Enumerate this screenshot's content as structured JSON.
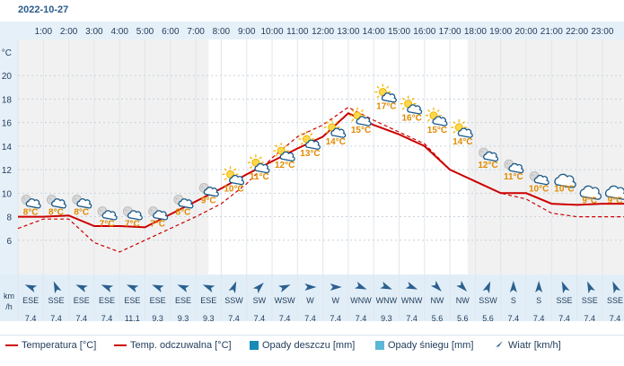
{
  "date": "2022-10-27",
  "hours": [
    "1:00",
    "2:00",
    "3:00",
    "4:00",
    "5:00",
    "6:00",
    "7:00",
    "8:00",
    "9:00",
    "10:00",
    "11:00",
    "12:00",
    "13:00",
    "14:00",
    "15:00",
    "16:00",
    "17:00",
    "18:00",
    "19:00",
    "20:00",
    "21:00",
    "22:00",
    "23:00"
  ],
  "y_unit": "°C",
  "y_ticks": [
    "6",
    "8",
    "10",
    "12",
    "14",
    "16",
    "18",
    "20"
  ],
  "wind_unit_line1": "km",
  "wind_unit_line2": "/h",
  "legend": {
    "temperature": "Temperatura [°C]",
    "feels_like": "Temp. odczuwalna [°C]",
    "rain": "Opady deszczu [mm]",
    "snow": "Opady śniegu [mm]",
    "wind": "Wiatr [km/h]"
  },
  "colors": {
    "temperature": "#cc0000",
    "feels_like": "#cc0000",
    "rain": "#1a8ab5",
    "snow": "#5cb8d6",
    "wind": "#2a6090",
    "label": "#e08a00"
  },
  "chart_data": {
    "type": "line",
    "x": [
      0,
      1,
      2,
      3,
      4,
      5,
      6,
      7,
      8,
      9,
      10,
      11,
      12,
      13,
      14,
      15,
      16,
      17,
      18,
      19,
      20,
      21,
      22,
      23,
      24
    ],
    "ylim": [
      4,
      22
    ],
    "series": [
      {
        "name": "Temperatura [°C]",
        "values": [
          8.0,
          8.0,
          8.1,
          7.2,
          7.2,
          7.1,
          8.2,
          9.3,
          10.4,
          11.6,
          12.7,
          13.8,
          14.8,
          16.8,
          15.8,
          15.0,
          14.0,
          12.0,
          11.0,
          10.0,
          10.0,
          9.1,
          9.0,
          9.1,
          9.1
        ]
      },
      {
        "name": "Temp. odczuwalna [°C]",
        "values": [
          7.0,
          7.8,
          7.8,
          5.8,
          5.0,
          6.0,
          7.0,
          8.0,
          9.1,
          10.8,
          13.0,
          14.8,
          15.8,
          17.3,
          16.2,
          15.2,
          14.2,
          12.0,
          11.0,
          10.0,
          9.5,
          8.3,
          8.0,
          8.0,
          8.0
        ]
      }
    ]
  },
  "temp_labels": [
    {
      "x": 0.5,
      "y": 8,
      "text": "8°C"
    },
    {
      "x": 1.5,
      "y": 8,
      "text": "8°C"
    },
    {
      "x": 2.5,
      "y": 8,
      "text": "8°C"
    },
    {
      "x": 3.5,
      "y": 7,
      "text": "7°C"
    },
    {
      "x": 4.5,
      "y": 7,
      "text": "7°C"
    },
    {
      "x": 5.5,
      "y": 7,
      "text": "7°C"
    },
    {
      "x": 6.5,
      "y": 8,
      "text": "8°C"
    },
    {
      "x": 7.5,
      "y": 9,
      "text": "9°C"
    },
    {
      "x": 8.5,
      "y": 10,
      "text": "10°C"
    },
    {
      "x": 9.5,
      "y": 11,
      "text": "11°C"
    },
    {
      "x": 10.5,
      "y": 12,
      "text": "12°C"
    },
    {
      "x": 11.5,
      "y": 13,
      "text": "13°C"
    },
    {
      "x": 12.5,
      "y": 14,
      "text": "14°C"
    },
    {
      "x": 13.5,
      "y": 15,
      "text": "15°C"
    },
    {
      "x": 14.5,
      "y": 17,
      "text": "17°C"
    },
    {
      "x": 15.5,
      "y": 16,
      "text": "16°C"
    },
    {
      "x": 16.5,
      "y": 15,
      "text": "15°C"
    },
    {
      "x": 17.5,
      "y": 14,
      "text": "14°C"
    },
    {
      "x": 18.5,
      "y": 12,
      "text": "12°C"
    },
    {
      "x": 19.5,
      "y": 11,
      "text": "11°C"
    },
    {
      "x": 20.5,
      "y": 10,
      "text": "10°C"
    },
    {
      "x": 21.5,
      "y": 10,
      "text": "10°C"
    },
    {
      "x": 22.5,
      "y": 9,
      "text": "9°C"
    },
    {
      "x": 23.5,
      "y": 9,
      "text": "9°C"
    }
  ],
  "weather_icons": [
    "night-partly-cloudy-icon",
    "night-partly-cloudy-icon",
    "night-partly-cloudy-icon",
    "night-partly-cloudy-icon",
    "night-partly-cloudy-icon",
    "night-partly-cloudy-icon",
    "night-partly-cloudy-icon",
    "night-partly-cloudy-icon",
    "sun-cloud-icon",
    "sun-cloud-icon",
    "sun-cloud-icon",
    "sun-cloud-icon",
    "sun-cloud-icon",
    "sun-cloud-icon",
    "sun-cloud-icon",
    "sun-cloud-icon",
    "sun-cloud-icon",
    "sun-cloud-icon",
    "night-partly-cloudy-icon",
    "night-partly-cloudy-icon",
    "night-partly-cloudy-icon",
    "cloud-icon",
    "cloud-icon",
    "cloud-icon"
  ],
  "wind": [
    {
      "dir": "ESE",
      "speed": "7.4",
      "deg": 292
    },
    {
      "dir": "SSE",
      "speed": "7.4",
      "deg": 337
    },
    {
      "dir": "ESE",
      "speed": "7.4",
      "deg": 292
    },
    {
      "dir": "ESE",
      "speed": "7.4",
      "deg": 292
    },
    {
      "dir": "ESE",
      "speed": "11.1",
      "deg": 292
    },
    {
      "dir": "ESE",
      "speed": "9.3",
      "deg": 292
    },
    {
      "dir": "ESE",
      "speed": "9.3",
      "deg": 292
    },
    {
      "dir": "ESE",
      "speed": "9.3",
      "deg": 292
    },
    {
      "dir": "SSW",
      "speed": "7.4",
      "deg": 22
    },
    {
      "dir": "SW",
      "speed": "7.4",
      "deg": 45
    },
    {
      "dir": "WSW",
      "speed": "7.4",
      "deg": 67
    },
    {
      "dir": "W",
      "speed": "7.4",
      "deg": 90
    },
    {
      "dir": "W",
      "speed": "7.4",
      "deg": 90
    },
    {
      "dir": "WNW",
      "speed": "7.4",
      "deg": 112
    },
    {
      "dir": "WNW",
      "speed": "9.3",
      "deg": 112
    },
    {
      "dir": "WNW",
      "speed": "7.4",
      "deg": 112
    },
    {
      "dir": "NW",
      "speed": "5.6",
      "deg": 135
    },
    {
      "dir": "NW",
      "speed": "5.6",
      "deg": 135
    },
    {
      "dir": "SSW",
      "speed": "5.6",
      "deg": 22
    },
    {
      "dir": "S",
      "speed": "7.4",
      "deg": 0
    },
    {
      "dir": "S",
      "speed": "7.4",
      "deg": 0
    },
    {
      "dir": "SSE",
      "speed": "7.4",
      "deg": 337
    },
    {
      "dir": "SSE",
      "speed": "7.4",
      "deg": 337
    },
    {
      "dir": "SSE",
      "speed": "7.4",
      "deg": 337
    }
  ]
}
